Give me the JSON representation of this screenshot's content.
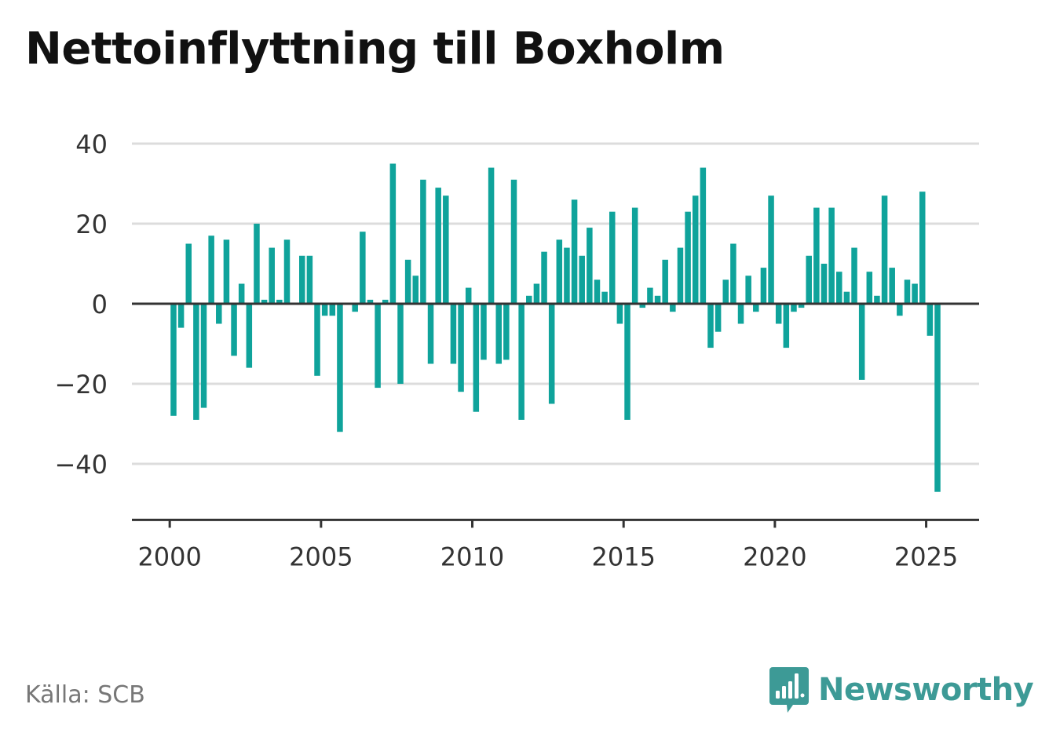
{
  "title": "Nettoinflyttning till Boxholm",
  "source": "Källa: SCB",
  "brand": {
    "name": "Newsworthy",
    "icon": "bar-chart-speech-icon",
    "color": "#3d9a96"
  },
  "colors": {
    "bar": "#0fa39b",
    "grid": "#dcdcdc",
    "axis": "#333333",
    "text": "#333333"
  },
  "chart_data": {
    "type": "bar",
    "title": "Nettoinflyttning till Boxholm",
    "xlabel": "",
    "ylabel": "",
    "frequency": "quarterly",
    "x_start": 2000,
    "xlim": [
      1998.75,
      2026.75
    ],
    "ylim": [
      -54,
      40
    ],
    "x_ticks": [
      2000,
      2005,
      2010,
      2015,
      2020,
      2025
    ],
    "x_tick_labels": [
      "2000",
      "2005",
      "2010",
      "2015",
      "2020",
      "2025"
    ],
    "y_ticks": [
      -40,
      -20,
      0,
      20,
      40
    ],
    "y_tick_labels": [
      "−40",
      "−20",
      "0",
      "20",
      "40"
    ],
    "grid": true,
    "legend": "none",
    "values": [
      -28,
      -6,
      15,
      -29,
      -26,
      17,
      -5,
      16,
      -13,
      5,
      -16,
      20,
      1,
      14,
      1,
      16,
      0,
      12,
      12,
      -18,
      -3,
      -3,
      -32,
      0,
      -2,
      18,
      1,
      -21,
      1,
      35,
      -20,
      11,
      7,
      31,
      -15,
      29,
      27,
      -15,
      -22,
      4,
      -27,
      -14,
      34,
      -15,
      -14,
      31,
      -29,
      2,
      5,
      13,
      -25,
      16,
      14,
      26,
      12,
      19,
      6,
      3,
      23,
      -5,
      -29,
      24,
      -1,
      4,
      2,
      11,
      -2,
      14,
      23,
      27,
      34,
      -11,
      -7,
      6,
      15,
      -5,
      7,
      -2,
      9,
      27,
      -5,
      -11,
      -2,
      -1,
      12,
      24,
      10,
      24,
      8,
      3,
      14,
      -19,
      8,
      2,
      27,
      9,
      -3,
      6,
      5,
      28,
      -8,
      -47
    ]
  }
}
